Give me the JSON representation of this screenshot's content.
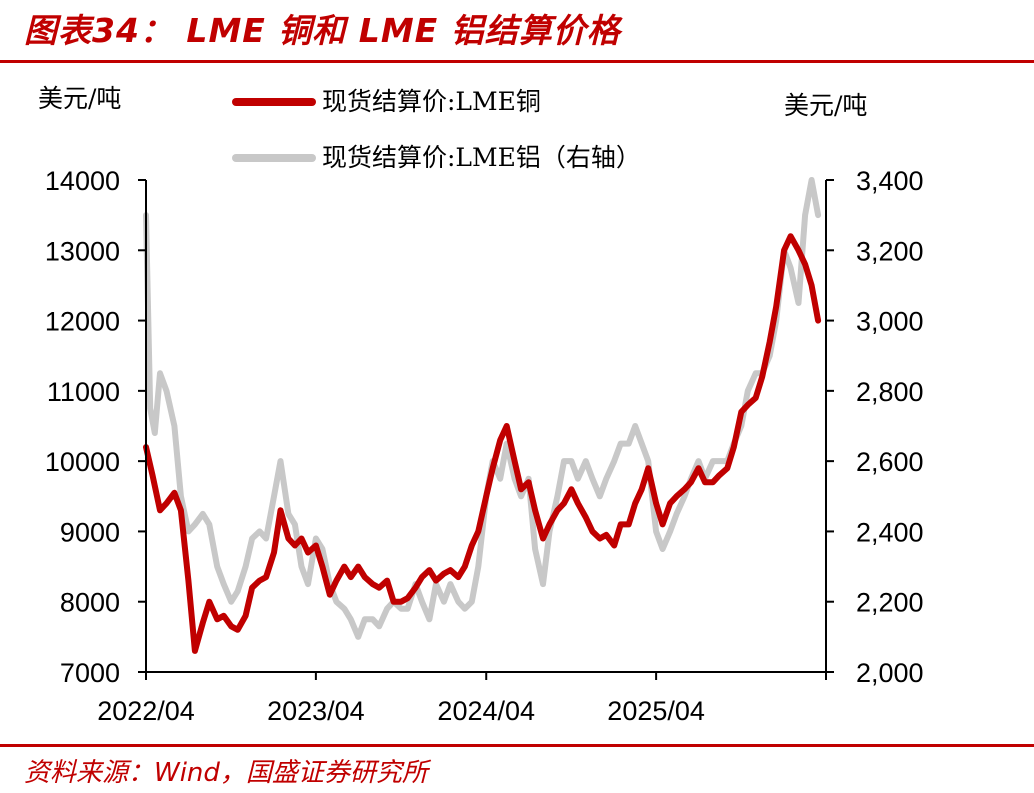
{
  "header": {
    "title": "图表34： LME 铜和 LME 铝结算价格"
  },
  "footer": {
    "source": "资料来源：Wind，国盛证券研究所"
  },
  "colors": {
    "accent": "#c00000",
    "copper": "#c00000",
    "aluminum": "#c8c8c8"
  },
  "chart_data": {
    "type": "line",
    "left_unit": "美元/吨",
    "right_unit": "美元/吨",
    "x_ticks": [
      "2022/04",
      "2023/04",
      "2024/04",
      "2025/04"
    ],
    "x_range": [
      "2022/04",
      "2026/04"
    ],
    "y_left": {
      "range": [
        7000,
        14000
      ],
      "ticks": [
        "7000",
        "8000",
        "9000",
        "10000",
        "11000",
        "12000",
        "13000",
        "14000"
      ]
    },
    "y_right": {
      "range": [
        2000,
        3400
      ],
      "ticks": [
        "2,000",
        "2,200",
        "2,400",
        "2,600",
        "2,800",
        "3,000",
        "3,200",
        "3,400"
      ]
    },
    "legend_position": "top",
    "series": [
      {
        "name": "现货结算价:LME铜",
        "axis": "left",
        "color": "#c00000",
        "points": [
          [
            "2022-04-01",
            10200
          ],
          [
            "2022-04-15",
            9800
          ],
          [
            "2022-05-01",
            9300
          ],
          [
            "2022-05-15",
            9400
          ],
          [
            "2022-06-01",
            9550
          ],
          [
            "2022-06-15",
            9300
          ],
          [
            "2022-07-01",
            8300
          ],
          [
            "2022-07-15",
            7300
          ],
          [
            "2022-08-01",
            7700
          ],
          [
            "2022-08-15",
            8000
          ],
          [
            "2022-09-01",
            7750
          ],
          [
            "2022-09-15",
            7800
          ],
          [
            "2022-10-01",
            7650
          ],
          [
            "2022-10-15",
            7600
          ],
          [
            "2022-11-01",
            7800
          ],
          [
            "2022-11-15",
            8200
          ],
          [
            "2022-12-01",
            8300
          ],
          [
            "2022-12-15",
            8350
          ],
          [
            "2023-01-01",
            8700
          ],
          [
            "2023-01-15",
            9300
          ],
          [
            "2023-02-01",
            8900
          ],
          [
            "2023-02-15",
            8800
          ],
          [
            "2023-03-01",
            8900
          ],
          [
            "2023-03-15",
            8700
          ],
          [
            "2023-04-01",
            8800
          ],
          [
            "2023-04-15",
            8500
          ],
          [
            "2023-05-01",
            8100
          ],
          [
            "2023-05-15",
            8300
          ],
          [
            "2023-06-01",
            8500
          ],
          [
            "2023-06-15",
            8350
          ],
          [
            "2023-07-01",
            8500
          ],
          [
            "2023-07-15",
            8350
          ],
          [
            "2023-08-01",
            8250
          ],
          [
            "2023-08-15",
            8200
          ],
          [
            "2023-09-01",
            8300
          ],
          [
            "2023-09-15",
            8000
          ],
          [
            "2023-10-01",
            8000
          ],
          [
            "2023-10-15",
            8050
          ],
          [
            "2023-11-01",
            8200
          ],
          [
            "2023-11-15",
            8350
          ],
          [
            "2023-12-01",
            8450
          ],
          [
            "2023-12-15",
            8300
          ],
          [
            "2024-01-01",
            8400
          ],
          [
            "2024-01-15",
            8450
          ],
          [
            "2024-02-01",
            8350
          ],
          [
            "2024-02-15",
            8500
          ],
          [
            "2024-03-01",
            8800
          ],
          [
            "2024-03-15",
            9000
          ],
          [
            "2024-04-01",
            9500
          ],
          [
            "2024-04-15",
            9900
          ],
          [
            "2024-05-01",
            10300
          ],
          [
            "2024-05-15",
            10500
          ],
          [
            "2024-06-01",
            10000
          ],
          [
            "2024-06-15",
            9600
          ],
          [
            "2024-07-01",
            9700
          ],
          [
            "2024-07-15",
            9300
          ],
          [
            "2024-08-01",
            8900
          ],
          [
            "2024-08-15",
            9100
          ],
          [
            "2024-09-01",
            9300
          ],
          [
            "2024-09-15",
            9400
          ],
          [
            "2024-10-01",
            9600
          ],
          [
            "2024-10-15",
            9400
          ],
          [
            "2024-11-01",
            9200
          ],
          [
            "2024-11-15",
            9000
          ],
          [
            "2024-12-01",
            8900
          ],
          [
            "2024-12-15",
            8950
          ],
          [
            "2025-01-01",
            8800
          ],
          [
            "2025-01-15",
            9100
          ],
          [
            "2025-02-01",
            9100
          ],
          [
            "2025-02-15",
            9400
          ],
          [
            "2025-03-01",
            9600
          ],
          [
            "2025-03-15",
            9900
          ],
          [
            "2025-04-01",
            9400
          ],
          [
            "2025-04-15",
            9100
          ],
          [
            "2025-05-01",
            9400
          ],
          [
            "2025-05-15",
            9500
          ],
          [
            "2025-06-01",
            9600
          ],
          [
            "2025-06-15",
            9700
          ],
          [
            "2025-07-01",
            9900
          ],
          [
            "2025-07-15",
            9700
          ],
          [
            "2025-08-01",
            9700
          ],
          [
            "2025-08-15",
            9800
          ],
          [
            "2025-09-01",
            9900
          ],
          [
            "2025-09-15",
            10200
          ],
          [
            "2025-10-01",
            10700
          ],
          [
            "2025-10-15",
            10800
          ],
          [
            "2025-11-01",
            10900
          ],
          [
            "2025-11-15",
            11200
          ],
          [
            "2025-12-01",
            11700
          ],
          [
            "2025-12-15",
            12200
          ],
          [
            "2026-01-01",
            13000
          ],
          [
            "2026-01-15",
            13200
          ],
          [
            "2026-02-01",
            13000
          ],
          [
            "2026-02-15",
            12800
          ],
          [
            "2026-03-01",
            12500
          ],
          [
            "2026-03-15",
            12000
          ]
        ]
      },
      {
        "name": "现货结算价:LME铝（右轴）",
        "axis": "right",
        "color": "#c8c8c8",
        "points": [
          [
            "2022-04-01",
            3300
          ],
          [
            "2022-04-10",
            2750
          ],
          [
            "2022-04-20",
            2680
          ],
          [
            "2022-05-01",
            2850
          ],
          [
            "2022-05-15",
            2800
          ],
          [
            "2022-06-01",
            2700
          ],
          [
            "2022-06-15",
            2500
          ],
          [
            "2022-07-01",
            2400
          ],
          [
            "2022-07-15",
            2420
          ],
          [
            "2022-08-01",
            2450
          ],
          [
            "2022-08-15",
            2420
          ],
          [
            "2022-09-01",
            2300
          ],
          [
            "2022-09-15",
            2250
          ],
          [
            "2022-10-01",
            2200
          ],
          [
            "2022-10-15",
            2230
          ],
          [
            "2022-11-01",
            2300
          ],
          [
            "2022-11-15",
            2380
          ],
          [
            "2022-12-01",
            2400
          ],
          [
            "2022-12-15",
            2380
          ],
          [
            "2023-01-01",
            2500
          ],
          [
            "2023-01-15",
            2600
          ],
          [
            "2023-02-01",
            2450
          ],
          [
            "2023-02-15",
            2420
          ],
          [
            "2023-03-01",
            2300
          ],
          [
            "2023-03-15",
            2250
          ],
          [
            "2023-04-01",
            2380
          ],
          [
            "2023-04-15",
            2350
          ],
          [
            "2023-05-01",
            2250
          ],
          [
            "2023-05-15",
            2200
          ],
          [
            "2023-06-01",
            2180
          ],
          [
            "2023-06-15",
            2150
          ],
          [
            "2023-07-01",
            2100
          ],
          [
            "2023-07-15",
            2150
          ],
          [
            "2023-08-01",
            2150
          ],
          [
            "2023-08-15",
            2130
          ],
          [
            "2023-09-01",
            2180
          ],
          [
            "2023-09-15",
            2200
          ],
          [
            "2023-10-01",
            2180
          ],
          [
            "2023-10-15",
            2180
          ],
          [
            "2023-11-01",
            2250
          ],
          [
            "2023-11-15",
            2200
          ],
          [
            "2023-12-01",
            2150
          ],
          [
            "2023-12-15",
            2250
          ],
          [
            "2024-01-01",
            2200
          ],
          [
            "2024-01-15",
            2250
          ],
          [
            "2024-02-01",
            2200
          ],
          [
            "2024-02-15",
            2180
          ],
          [
            "2024-03-01",
            2200
          ],
          [
            "2024-03-15",
            2300
          ],
          [
            "2024-04-01",
            2500
          ],
          [
            "2024-04-15",
            2600
          ],
          [
            "2024-05-01",
            2550
          ],
          [
            "2024-05-15",
            2650
          ],
          [
            "2024-06-01",
            2550
          ],
          [
            "2024-06-15",
            2500
          ],
          [
            "2024-07-01",
            2550
          ],
          [
            "2024-07-15",
            2350
          ],
          [
            "2024-08-01",
            2250
          ],
          [
            "2024-08-15",
            2400
          ],
          [
            "2024-09-01",
            2500
          ],
          [
            "2024-09-15",
            2600
          ],
          [
            "2024-10-01",
            2600
          ],
          [
            "2024-10-15",
            2550
          ],
          [
            "2024-11-01",
            2600
          ],
          [
            "2024-11-15",
            2550
          ],
          [
            "2024-12-01",
            2500
          ],
          [
            "2024-12-15",
            2550
          ],
          [
            "2025-01-01",
            2600
          ],
          [
            "2025-01-15",
            2650
          ],
          [
            "2025-02-01",
            2650
          ],
          [
            "2025-02-15",
            2700
          ],
          [
            "2025-03-01",
            2650
          ],
          [
            "2025-03-15",
            2600
          ],
          [
            "2025-04-01",
            2400
          ],
          [
            "2025-04-15",
            2350
          ],
          [
            "2025-05-01",
            2400
          ],
          [
            "2025-05-15",
            2450
          ],
          [
            "2025-06-01",
            2500
          ],
          [
            "2025-06-15",
            2550
          ],
          [
            "2025-07-01",
            2600
          ],
          [
            "2025-07-15",
            2550
          ],
          [
            "2025-08-01",
            2600
          ],
          [
            "2025-08-15",
            2600
          ],
          [
            "2025-09-01",
            2600
          ],
          [
            "2025-09-15",
            2650
          ],
          [
            "2025-10-01",
            2700
          ],
          [
            "2025-10-15",
            2800
          ],
          [
            "2025-11-01",
            2850
          ],
          [
            "2025-11-15",
            2850
          ],
          [
            "2025-12-01",
            2900
          ],
          [
            "2025-12-15",
            3000
          ],
          [
            "2026-01-01",
            3200
          ],
          [
            "2026-01-15",
            3150
          ],
          [
            "2026-02-01",
            3050
          ],
          [
            "2026-02-15",
            3300
          ],
          [
            "2026-03-01",
            3400
          ],
          [
            "2026-03-15",
            3300
          ]
        ]
      }
    ]
  }
}
